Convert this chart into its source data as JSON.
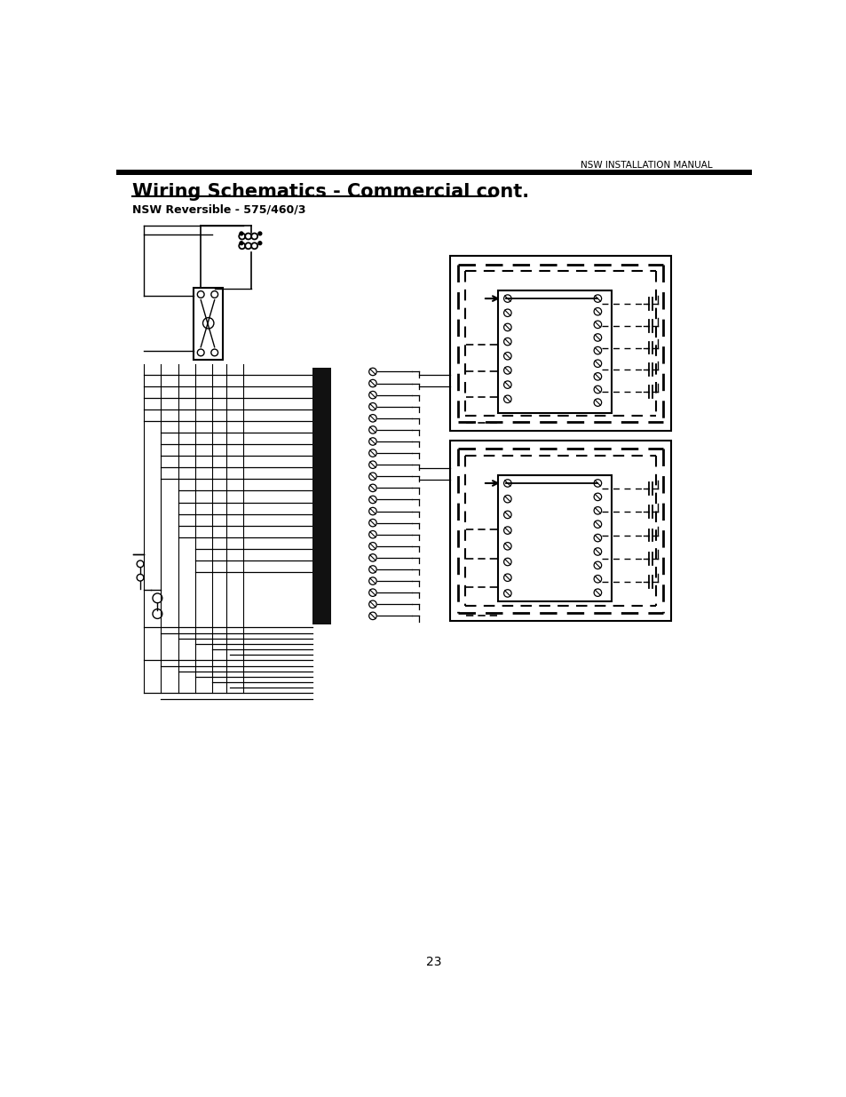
{
  "title": "Wiring Schematics - Commercial cont.",
  "subtitle": "NSW Reversible - 575/460/3",
  "header_text": "NSW INSTALLATION MANUAL",
  "page_number": "23",
  "bg_color": "#ffffff",
  "line_color": "#000000",
  "gray_color": "#888888"
}
